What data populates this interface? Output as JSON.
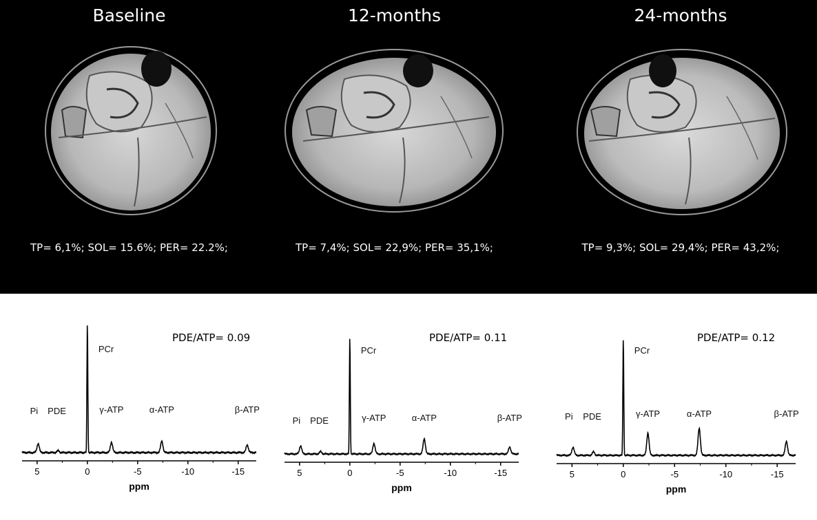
{
  "mri_panels": [
    {
      "title": "Baseline",
      "stats": "TP= 6,1%; SOL= 15.6%; PER= 22.2%;"
    },
    {
      "title": "12-months",
      "stats": "TP= 7,4%; SOL= 22,9%; PER= 35,1%;"
    },
    {
      "title": "24-months",
      "stats": "TP= 9,3%; SOL= 29,4%; PER= 43,2%;"
    }
  ],
  "spectra": [
    {
      "ratio": "PDE/ATP= 0.09"
    },
    {
      "ratio": "PDE/ATP= 0.11"
    },
    {
      "ratio": "PDE/ATP= 0.12"
    }
  ],
  "chart_data": [
    {
      "type": "line",
      "xlabel": "ppm",
      "xlim": [
        6.5,
        -16.8
      ],
      "xticks": [
        "5",
        "0",
        "-5",
        "-10",
        "-15"
      ],
      "peak_labels": [
        "Pi",
        "PDE",
        "PCr",
        "γ-ATP",
        "α-ATP",
        "β-ATP"
      ],
      "peaks": [
        {
          "ppm": 4.9,
          "height": 0.07
        },
        {
          "ppm": 2.9,
          "height": 0.015
        },
        {
          "ppm": 0.0,
          "height": 1.0
        },
        {
          "ppm": -2.4,
          "height": 0.08
        },
        {
          "ppm": -7.4,
          "height": 0.09
        },
        {
          "ppm": -15.9,
          "height": 0.06
        }
      ]
    },
    {
      "type": "line",
      "xlabel": "ppm",
      "xlim": [
        6.5,
        -16.8
      ],
      "xticks": [
        "5",
        "0",
        "-5",
        "-10",
        "-15"
      ],
      "peak_labels": [
        "Pi",
        "PDE",
        "PCr",
        "γ-ATP",
        "α-ATP",
        "β-ATP"
      ],
      "peaks": [
        {
          "ppm": 4.9,
          "height": 0.07
        },
        {
          "ppm": 2.9,
          "height": 0.02
        },
        {
          "ppm": 0.0,
          "height": 1.0
        },
        {
          "ppm": -2.4,
          "height": 0.09
        },
        {
          "ppm": -7.4,
          "height": 0.13
        },
        {
          "ppm": -15.9,
          "height": 0.06
        }
      ]
    },
    {
      "type": "line",
      "xlabel": "ppm",
      "xlim": [
        6.5,
        -16.8
      ],
      "xticks": [
        "5",
        "0",
        "-5",
        "-10",
        "-15"
      ],
      "peak_labels": [
        "Pi",
        "PDE",
        "PCr",
        "γ-ATP",
        "α-ATP",
        "β-ATP"
      ],
      "peaks": [
        {
          "ppm": 4.9,
          "height": 0.07
        },
        {
          "ppm": 2.9,
          "height": 0.03
        },
        {
          "ppm": 0.0,
          "height": 1.0
        },
        {
          "ppm": -2.4,
          "height": 0.19
        },
        {
          "ppm": -7.4,
          "height": 0.23
        },
        {
          "ppm": -15.9,
          "height": 0.12
        }
      ]
    }
  ]
}
